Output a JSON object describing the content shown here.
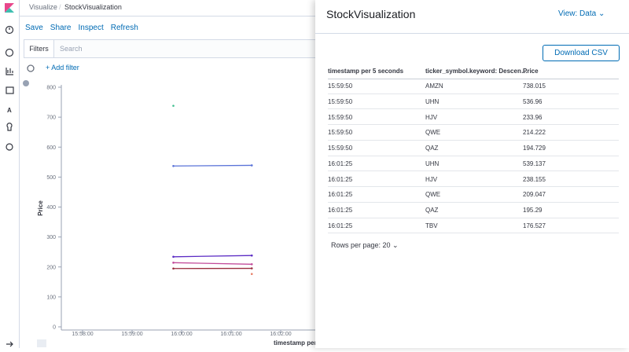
{
  "breadcrumb": {
    "root": "Visualize",
    "current": "StockVisualization"
  },
  "toolbar": [
    "Save",
    "Share",
    "Inspect",
    "Refresh"
  ],
  "filters": {
    "label": "Filters",
    "search_placeholder": "Search",
    "add": "+ Add filter"
  },
  "chart_data": {
    "type": "line",
    "y_label": "Price",
    "x_label": "timestamp per",
    "x": [
      "15:59:50",
      "16:01:25"
    ],
    "series": [
      {
        "name": "AMZN",
        "color": "#3fbf8f",
        "values": [
          738.015,
          null
        ]
      },
      {
        "name": "UHN",
        "color": "#5a73d8",
        "values": [
          536.96,
          539.137
        ]
      },
      {
        "name": "HJV",
        "color": "#5b2bc4",
        "values": [
          233.96,
          238.155
        ]
      },
      {
        "name": "QWE",
        "color": "#c24a9a",
        "values": [
          214.222,
          209.047
        ]
      },
      {
        "name": "QAZ",
        "color": "#9a2d3f",
        "values": [
          194.729,
          195.29
        ]
      },
      {
        "name": "TBV",
        "color": "#e8816a",
        "values": [
          null,
          176.527
        ]
      }
    ],
    "ylim": [
      0,
      800
    ],
    "yticks": [
      0,
      100,
      200,
      300,
      400,
      500,
      600,
      700,
      800
    ],
    "xticks": [
      "15:58:00",
      "15:59:00",
      "16:00:00",
      "16:01:00",
      "16:02:00"
    ]
  },
  "flyout": {
    "title": "StockVisualization",
    "view": "View: Data",
    "download": "Download CSV",
    "table": {
      "headers": [
        "timestamp per 5 seconds",
        "ticker_symbol.keyword: Descen…",
        "Price"
      ],
      "rows": [
        [
          "15:59:50",
          "AMZN",
          "738.015"
        ],
        [
          "15:59:50",
          "UHN",
          "536.96"
        ],
        [
          "15:59:50",
          "HJV",
          "233.96"
        ],
        [
          "15:59:50",
          "QWE",
          "214.222"
        ],
        [
          "15:59:50",
          "QAZ",
          "194.729"
        ],
        [
          "16:01:25",
          "UHN",
          "539.137"
        ],
        [
          "16:01:25",
          "HJV",
          "238.155"
        ],
        [
          "16:01:25",
          "QWE",
          "209.047"
        ],
        [
          "16:01:25",
          "QAZ",
          "195.29"
        ],
        [
          "16:01:25",
          "TBV",
          "176.527"
        ]
      ]
    },
    "pagination": "Rows per page: 20"
  }
}
